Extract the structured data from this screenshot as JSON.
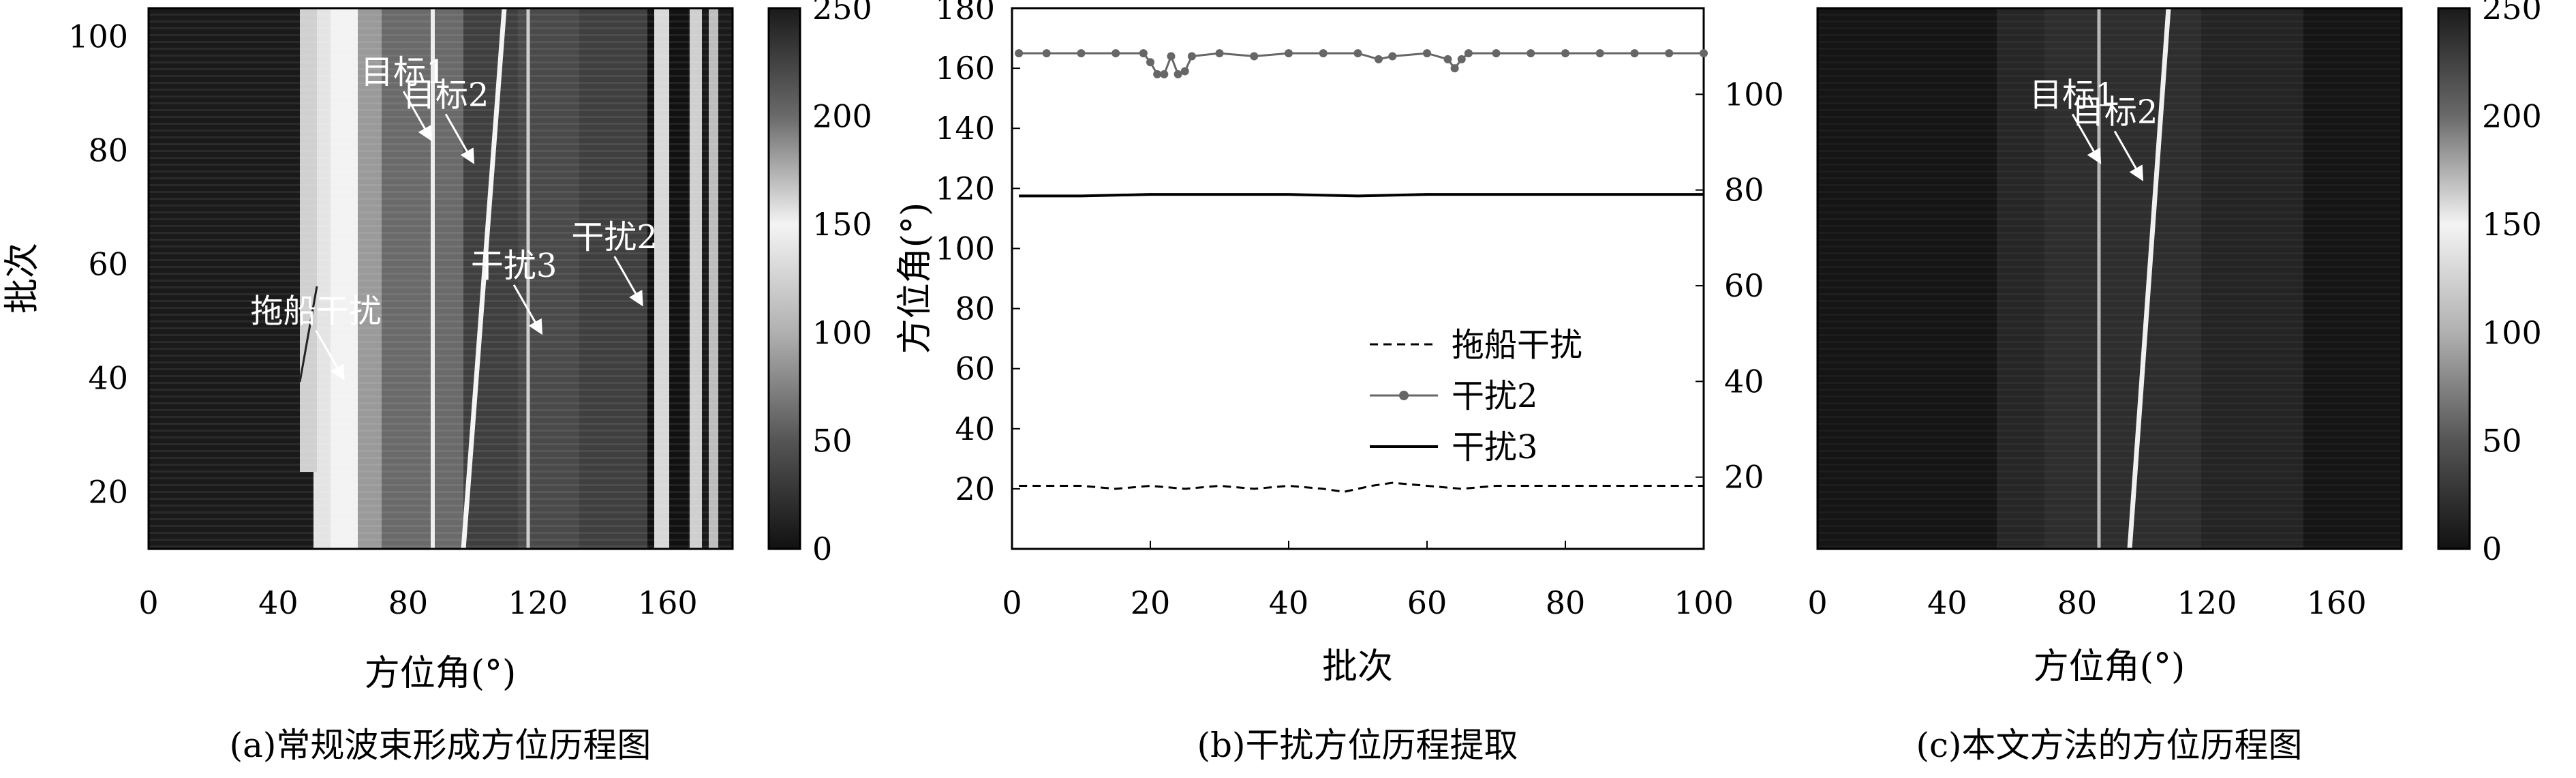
{
  "chart_data": [
    {
      "id": "a",
      "type": "heatmap",
      "caption": "(a)常规波束形成方位历程图",
      "xlabel": "方位角(°)",
      "ylabel": "批次",
      "xlim": [
        0,
        180
      ],
      "ylim": [
        10,
        105
      ],
      "xticks": [
        0,
        40,
        80,
        120,
        160
      ],
      "yticks": [
        20,
        40,
        60,
        80,
        100
      ],
      "colorbar": {
        "range": [
          0,
          250
        ],
        "ticks": [
          0,
          50,
          100,
          150,
          200,
          250
        ]
      },
      "annotations": [
        {
          "text": "目标1",
          "x": 87,
          "y": 82
        },
        {
          "text": "目标2",
          "x": 100,
          "y": 78
        },
        {
          "text": "干扰3",
          "x": 121,
          "y": 48
        },
        {
          "text": "拖船干扰",
          "x": 60,
          "y": 40
        },
        {
          "text": "干扰2",
          "x": 152,
          "y": 53
        }
      ]
    },
    {
      "id": "b",
      "type": "line",
      "caption": "(b)干扰方位历程提取",
      "xlabel": "批次",
      "ylabel": "方位角(°)",
      "xlim": [
        0,
        100
      ],
      "ylim": [
        0,
        180
      ],
      "y2lim": [
        5,
        118
      ],
      "xticks": [
        0,
        20,
        40,
        60,
        80,
        100
      ],
      "yticks": [
        20,
        40,
        60,
        80,
        100,
        120,
        140,
        160,
        180
      ],
      "y2ticks": [
        20,
        40,
        60,
        80,
        100
      ],
      "legend_position": "center",
      "series": [
        {
          "name": "拖船干扰",
          "style": "dashed",
          "x": [
            1,
            10,
            15,
            20,
            25,
            30,
            35,
            40,
            45,
            48,
            52,
            55,
            60,
            65,
            70,
            75,
            80,
            85,
            90,
            95,
            100
          ],
          "values": [
            21,
            21,
            20,
            21,
            20,
            21,
            20,
            21,
            20,
            19,
            21,
            22,
            21,
            20,
            21,
            21,
            21,
            21,
            21,
            21,
            21
          ]
        },
        {
          "name": "干扰2",
          "style": "dot-marker",
          "x": [
            1,
            5,
            10,
            15,
            19,
            20,
            21,
            22,
            23,
            24,
            25,
            26,
            30,
            35,
            40,
            45,
            50,
            53,
            55,
            60,
            63,
            64,
            65,
            66,
            70,
            75,
            80,
            85,
            90,
            95,
            100
          ],
          "values": [
            165,
            165,
            165,
            165,
            165,
            162,
            158,
            158,
            164,
            158,
            159,
            164,
            165,
            164,
            165,
            165,
            165,
            163,
            164,
            165,
            163,
            160,
            163,
            165,
            165,
            165,
            165,
            165,
            165,
            165,
            165
          ]
        },
        {
          "name": "干扰3",
          "style": "solid",
          "x": [
            1,
            10,
            20,
            30,
            40,
            50,
            60,
            70,
            80,
            90,
            100
          ],
          "values": [
            117.5,
            117.5,
            118,
            118,
            118,
            117.5,
            118,
            118,
            118,
            118,
            118
          ]
        }
      ]
    },
    {
      "id": "c",
      "type": "heatmap",
      "caption": "(c)本文方法的方位历程图",
      "xlabel": "方位角(°)",
      "ylabel": "",
      "xlim": [
        0,
        180
      ],
      "ylim": [
        10,
        105
      ],
      "xticks": [
        0,
        40,
        80,
        120,
        160
      ],
      "colorbar": {
        "range": [
          0,
          250
        ],
        "ticks": [
          0,
          50,
          100,
          150,
          200,
          250
        ]
      },
      "annotations": [
        {
          "text": "目标1",
          "x": 87,
          "y": 78
        },
        {
          "text": "目标2",
          "x": 100,
          "y": 75
        }
      ]
    }
  ],
  "colors": {
    "line": "#000000",
    "marker": "#666666",
    "annotation": "#ffffff"
  }
}
